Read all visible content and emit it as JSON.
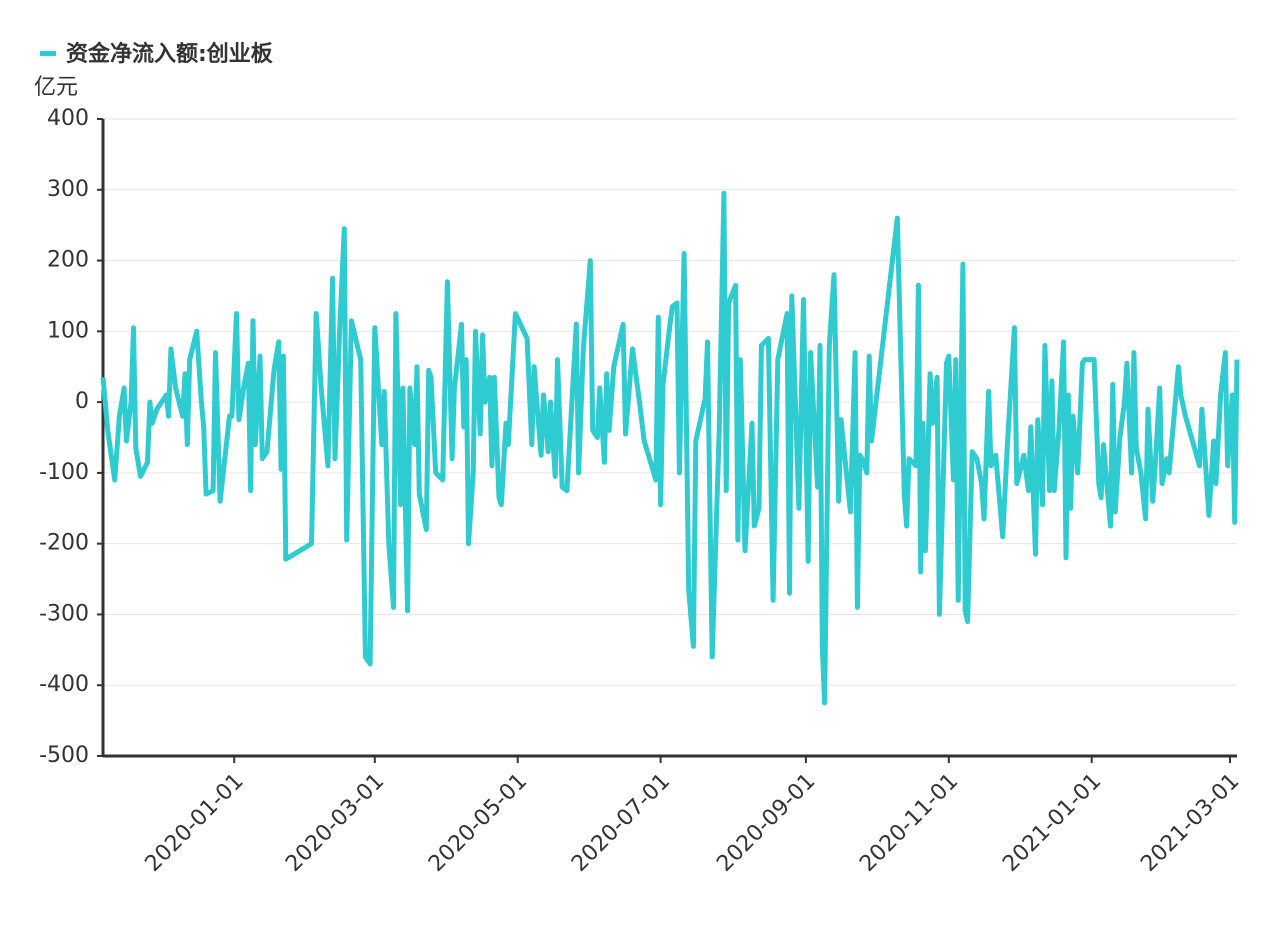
{
  "chart_data": {
    "type": "line",
    "y_unit": "亿元",
    "x": [
      "2019-11-06",
      "2019-11-08",
      "2019-11-11",
      "2019-11-13",
      "2019-11-15",
      "2019-11-16",
      "2019-11-18",
      "2019-11-19",
      "2019-11-20",
      "2019-11-22",
      "2019-11-25",
      "2019-11-26",
      "2019-11-27",
      "2019-11-29",
      "2019-12-03",
      "2019-12-04",
      "2019-12-05",
      "2019-12-07",
      "2019-12-10",
      "2019-12-11",
      "2019-12-12",
      "2019-12-13",
      "2019-12-16",
      "2019-12-18",
      "2019-12-19",
      "2019-12-20",
      "2019-12-23",
      "2019-12-24",
      "2019-12-26",
      "2019-12-30",
      "2019-12-31",
      "2020-01-02",
      "2020-01-03",
      "2020-01-05",
      "2020-01-07",
      "2020-01-08",
      "2020-01-09",
      "2020-01-10",
      "2020-01-12",
      "2020-01-13",
      "2020-01-15",
      "2020-01-18",
      "2020-01-20",
      "2020-01-21",
      "2020-01-22",
      "2020-01-23",
      "2020-02-03",
      "2020-02-05",
      "2020-02-07",
      "2020-02-10",
      "2020-02-12",
      "2020-02-13",
      "2020-02-15",
      "2020-02-17",
      "2020-02-18",
      "2020-02-20",
      "2020-02-24",
      "2020-02-26",
      "2020-02-28",
      "2020-03-01",
      "2020-03-04",
      "2020-03-05",
      "2020-03-07",
      "2020-03-09",
      "2020-03-10",
      "2020-03-12",
      "2020-03-13",
      "2020-03-15",
      "2020-03-16",
      "2020-03-18",
      "2020-03-19",
      "2020-03-20",
      "2020-03-23",
      "2020-03-24",
      "2020-03-25",
      "2020-03-27",
      "2020-03-30",
      "2020-04-01",
      "2020-04-03",
      "2020-04-04",
      "2020-04-07",
      "2020-04-08",
      "2020-04-09",
      "2020-04-10",
      "2020-04-12",
      "2020-04-13",
      "2020-04-15",
      "2020-04-16",
      "2020-04-17",
      "2020-04-19",
      "2020-04-20",
      "2020-04-21",
      "2020-04-23",
      "2020-04-24",
      "2020-04-26",
      "2020-04-27",
      "2020-04-30",
      "2020-05-05",
      "2020-05-07",
      "2020-05-08",
      "2020-05-10",
      "2020-05-11",
      "2020-05-12",
      "2020-05-14",
      "2020-05-15",
      "2020-05-17",
      "2020-05-18",
      "2020-05-20",
      "2020-05-22",
      "2020-05-26",
      "2020-05-27",
      "2020-05-29",
      "2020-06-01",
      "2020-06-02",
      "2020-06-04",
      "2020-06-05",
      "2020-06-07",
      "2020-06-08",
      "2020-06-09",
      "2020-06-11",
      "2020-06-15",
      "2020-06-16",
      "2020-06-19",
      "2020-06-22",
      "2020-06-24",
      "2020-06-29",
      "2020-06-30",
      "2020-07-01",
      "2020-07-02",
      "2020-07-05",
      "2020-07-06",
      "2020-07-08",
      "2020-07-09",
      "2020-07-11",
      "2020-07-13",
      "2020-07-15",
      "2020-07-16",
      "2020-07-20",
      "2020-07-21",
      "2020-07-23",
      "2020-07-26",
      "2020-07-28",
      "2020-07-29",
      "2020-07-30",
      "2020-08-02",
      "2020-08-03",
      "2020-08-04",
      "2020-08-06",
      "2020-08-09",
      "2020-08-10",
      "2020-08-12",
      "2020-08-13",
      "2020-08-16",
      "2020-08-18",
      "2020-08-20",
      "2020-08-24",
      "2020-08-25",
      "2020-08-26",
      "2020-08-29",
      "2020-08-31",
      "2020-09-02",
      "2020-09-03",
      "2020-09-06",
      "2020-09-07",
      "2020-09-08",
      "2020-09-09",
      "2020-09-11",
      "2020-09-13",
      "2020-09-15",
      "2020-09-16",
      "2020-09-20",
      "2020-09-22",
      "2020-09-23",
      "2020-09-24",
      "2020-09-25",
      "2020-09-27",
      "2020-09-28",
      "2020-09-29",
      "2020-10-10",
      "2020-10-13",
      "2020-10-14",
      "2020-10-15",
      "2020-10-18",
      "2020-10-19",
      "2020-10-20",
      "2020-10-21",
      "2020-10-22",
      "2020-10-24",
      "2020-10-25",
      "2020-10-27",
      "2020-10-28",
      "2020-10-31",
      "2020-11-01",
      "2020-11-03",
      "2020-11-04",
      "2020-11-05",
      "2020-11-07",
      "2020-11-08",
      "2020-11-09",
      "2020-11-11",
      "2020-11-13",
      "2020-11-15",
      "2020-11-16",
      "2020-11-18",
      "2020-11-19",
      "2020-11-21",
      "2020-11-24",
      "2020-11-26",
      "2020-11-29",
      "2020-11-30",
      "2020-12-03",
      "2020-12-05",
      "2020-12-06",
      "2020-12-08",
      "2020-12-09",
      "2020-12-11",
      "2020-12-12",
      "2020-12-14",
      "2020-12-15",
      "2020-12-16",
      "2020-12-18",
      "2020-12-20",
      "2020-12-21",
      "2020-12-22",
      "2020-12-23",
      "2020-12-24",
      "2020-12-26",
      "2020-12-28",
      "2020-12-29",
      "2021-01-02",
      "2021-01-04",
      "2021-01-05",
      "2021-01-06",
      "2021-01-09",
      "2021-01-10",
      "2021-01-11",
      "2021-01-13",
      "2021-01-15",
      "2021-01-16",
      "2021-01-18",
      "2021-01-19",
      "2021-01-20",
      "2021-01-22",
      "2021-01-24",
      "2021-01-25",
      "2021-01-27",
      "2021-01-28",
      "2021-01-30",
      "2021-01-31",
      "2021-02-02",
      "2021-02-03",
      "2021-02-07",
      "2021-02-08",
      "2021-02-10",
      "2021-02-16",
      "2021-02-17",
      "2021-02-20",
      "2021-02-22",
      "2021-02-23",
      "2021-02-25",
      "2021-02-27",
      "2021-02-28",
      "2021-03-02",
      "2021-03-03",
      "2021-03-04"
    ],
    "series": [
      {
        "name": "资金净流入额:创业板",
        "color": "#2ecbd0",
        "values": [
          35,
          -40,
          -110,
          -20,
          20,
          -55,
          0,
          105,
          -65,
          -105,
          -85,
          0,
          -30,
          -10,
          10,
          -20,
          75,
          20,
          -20,
          40,
          -60,
          60,
          100,
          0,
          -35,
          -130,
          -125,
          70,
          -140,
          -20,
          -20,
          125,
          -25,
          20,
          55,
          -125,
          115,
          -60,
          65,
          -80,
          -70,
          45,
          85,
          -95,
          65,
          -222,
          -200,
          125,
          25,
          -90,
          175,
          -80,
          100,
          245,
          -195,
          115,
          60,
          -360,
          -370,
          105,
          -60,
          15,
          -200,
          -290,
          125,
          -145,
          20,
          -295,
          20,
          -60,
          50,
          -130,
          -180,
          45,
          35,
          -100,
          -110,
          170,
          -80,
          20,
          110,
          -35,
          60,
          -200,
          -100,
          100,
          -45,
          95,
          0,
          35,
          -90,
          35,
          -135,
          -145,
          -30,
          -60,
          125,
          90,
          -60,
          50,
          -35,
          -75,
          10,
          -70,
          0,
          -105,
          60,
          -120,
          -125,
          110,
          -100,
          75,
          200,
          -40,
          -50,
          20,
          -85,
          40,
          -40,
          50,
          110,
          -45,
          75,
          0,
          -55,
          -110,
          120,
          -145,
          25,
          110,
          135,
          140,
          -100,
          210,
          -265,
          -345,
          -55,
          5,
          85,
          -360,
          -40,
          295,
          -125,
          140,
          165,
          -195,
          60,
          -210,
          -30,
          -175,
          -150,
          80,
          90,
          -280,
          60,
          125,
          -270,
          150,
          -150,
          145,
          -225,
          70,
          -120,
          80,
          -345,
          -425,
          80,
          180,
          -140,
          -25,
          -155,
          70,
          -290,
          -75,
          -80,
          -100,
          65,
          -55,
          260,
          -130,
          -175,
          -80,
          -90,
          165,
          -240,
          -30,
          -210,
          40,
          -30,
          35,
          -300,
          55,
          65,
          -110,
          60,
          -280,
          195,
          -295,
          -310,
          -70,
          -80,
          -115,
          -165,
          15,
          -90,
          -75,
          -190,
          -60,
          105,
          -115,
          -75,
          -125,
          -35,
          -215,
          -25,
          -145,
          80,
          -125,
          30,
          -125,
          -40,
          85,
          -220,
          10,
          -150,
          -20,
          -100,
          55,
          60,
          60,
          -115,
          -135,
          -60,
          -175,
          25,
          -155,
          -50,
          0,
          55,
          -100,
          70,
          -65,
          -100,
          -165,
          -10,
          -140,
          -95,
          20,
          -115,
          -80,
          -100,
          50,
          10,
          -20,
          -90,
          -10,
          -160,
          -55,
          -115,
          10,
          70,
          -90,
          10,
          -170,
          60
        ]
      }
    ],
    "xlim": [
      "2019-11-06",
      "2021-03-04"
    ],
    "xticks": [
      "2020-01-01",
      "2020-03-01",
      "2020-05-01",
      "2020-07-01",
      "2020-09-01",
      "2020-11-01",
      "2021-01-01",
      "2021-03-01"
    ],
    "ylim": [
      -500,
      400
    ],
    "yticks": [
      -500,
      -400,
      -300,
      -200,
      -100,
      0,
      100,
      200,
      300,
      400
    ],
    "grid": true
  }
}
